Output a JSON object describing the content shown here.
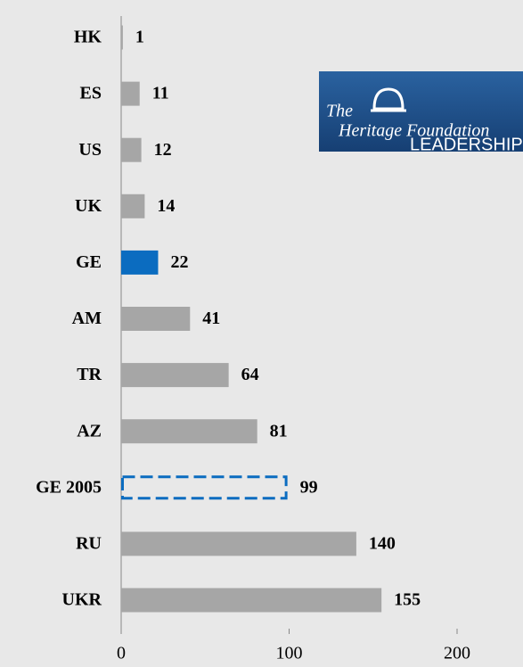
{
  "chart_data": {
    "type": "barh",
    "categories": [
      "HK",
      "ES",
      "US",
      "UK",
      "GE",
      "AM",
      "TR",
      "AZ",
      "GE 2005",
      "RU",
      "UKR"
    ],
    "values": [
      1,
      11,
      12,
      14,
      22,
      41,
      64,
      81,
      99,
      140,
      155
    ],
    "bar_colors": [
      "#a6a6a6",
      "#a6a6a6",
      "#a6a6a6",
      "#a6a6a6",
      "#0b6cc0",
      "#a6a6a6",
      "#a6a6a6",
      "#a6a6a6",
      "#0b6cc0",
      "#a6a6a6",
      "#a6a6a6"
    ],
    "bar_styles": [
      "solid",
      "solid",
      "solid",
      "solid",
      "solid",
      "solid",
      "solid",
      "solid",
      "dashed",
      "solid",
      "solid"
    ],
    "xlim": [
      0,
      200
    ],
    "xticks": [
      0,
      100,
      200
    ]
  },
  "logo": {
    "line1": "The",
    "line2": "Heritage Foundation",
    "tagline": "LEADERSHIP FOR AMERICA"
  }
}
